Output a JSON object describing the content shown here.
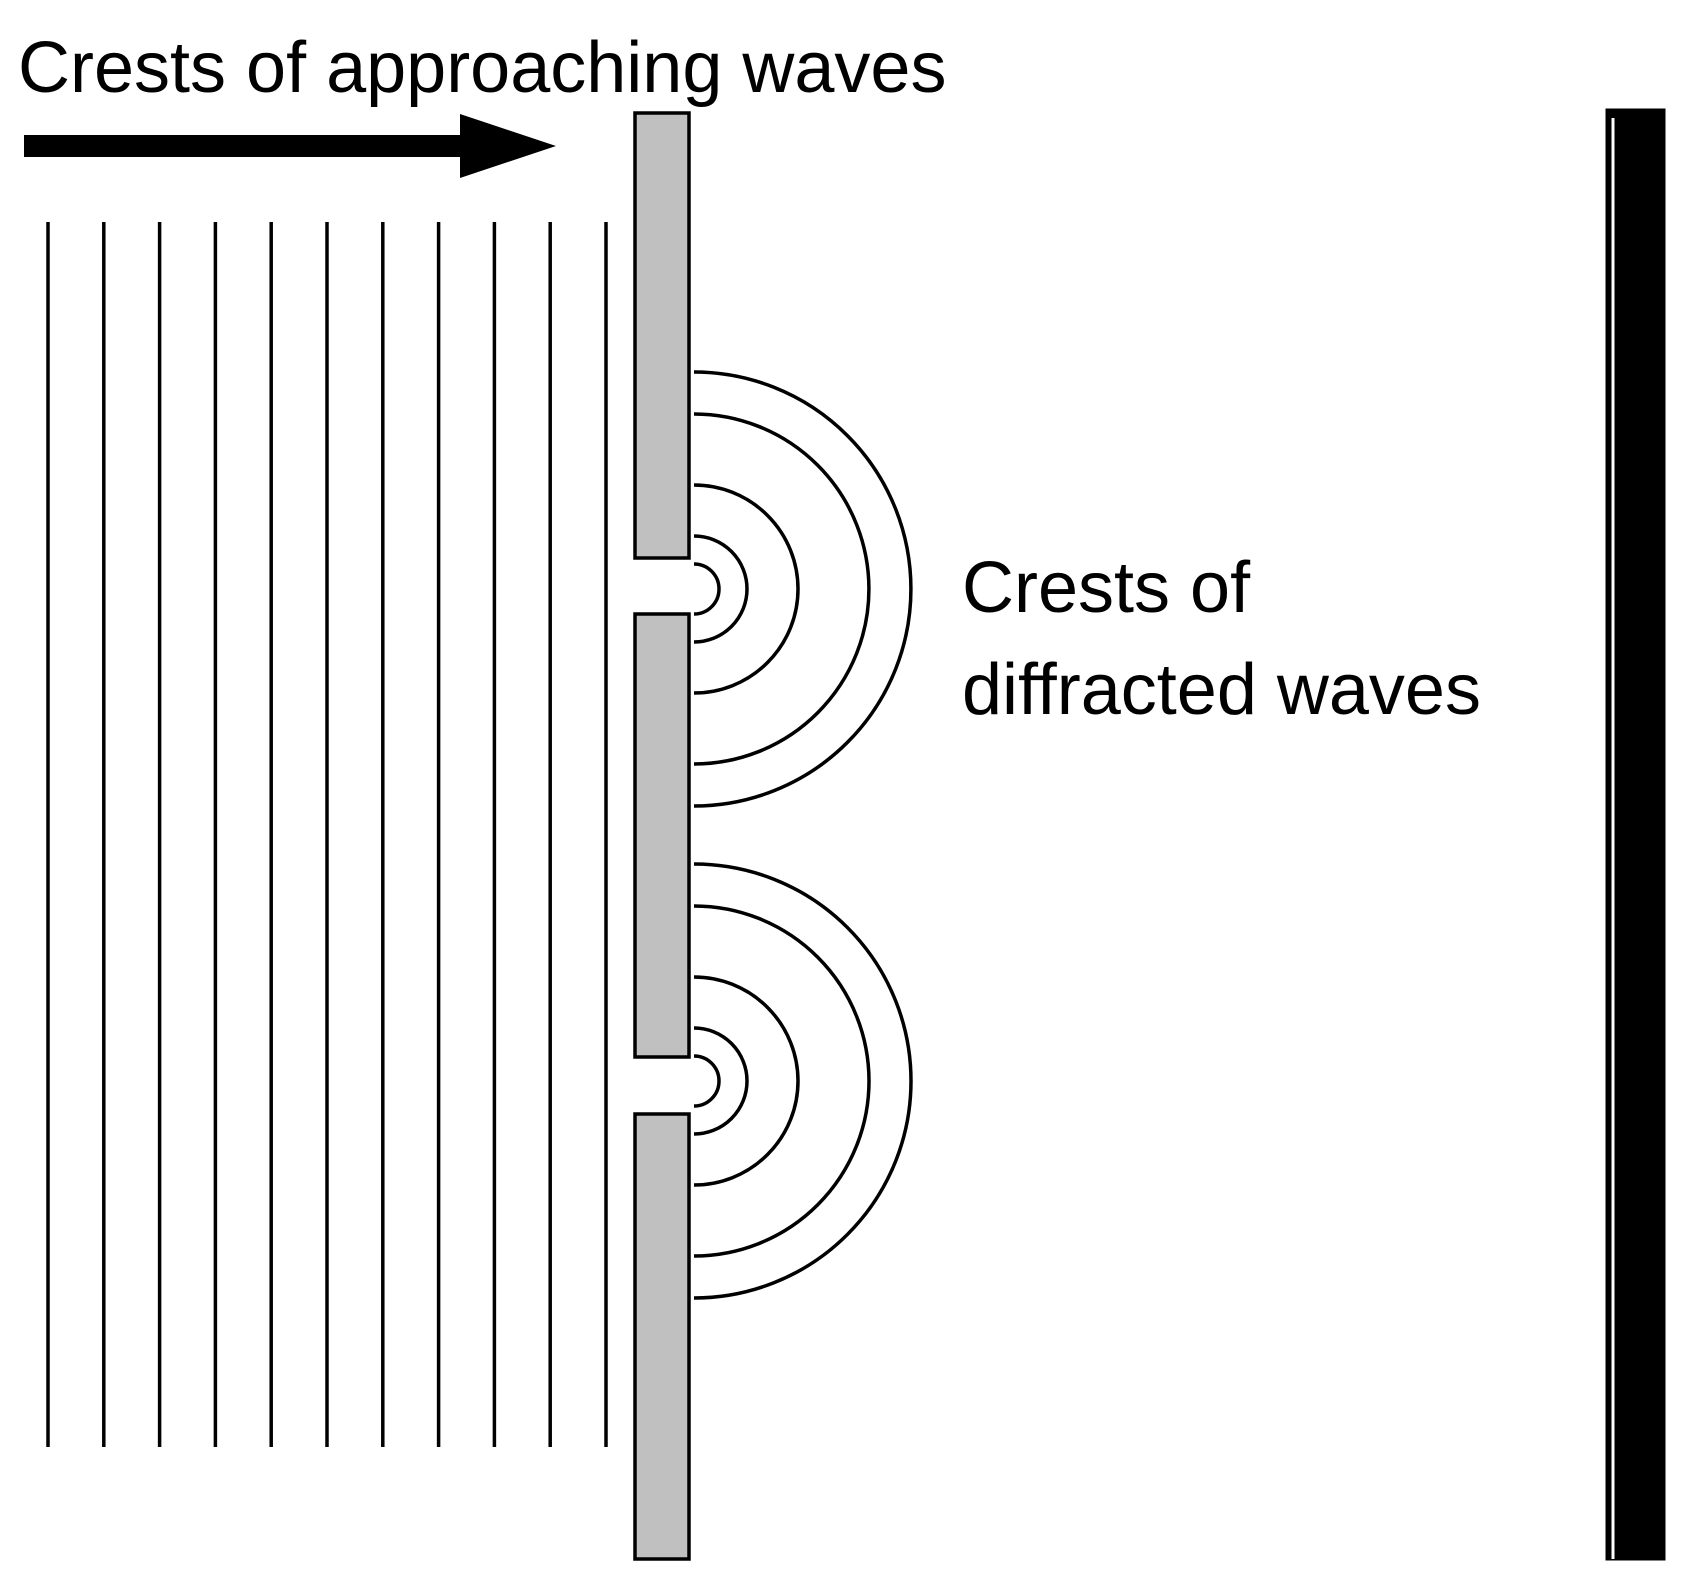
{
  "labels": {
    "approaching": "Crests of approaching waves",
    "diffracted_line1": "Crests of",
    "diffracted_line2": "diffracted waves"
  },
  "elements": {
    "incident_crest_count": 11,
    "slit_count": 2,
    "diffracted_crests_per_slit": 5
  },
  "colors": {
    "barrier": "#c0c0c0",
    "screen": "#000000",
    "lines": "#000000",
    "background": "#ffffff"
  }
}
